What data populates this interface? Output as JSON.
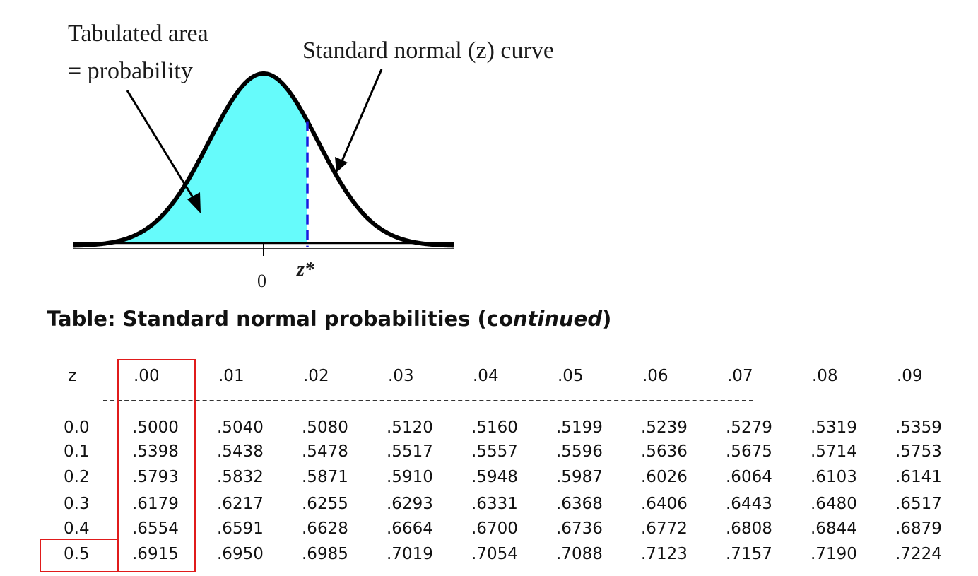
{
  "figure": {
    "annotation_area_line1": "Tabulated area",
    "annotation_area_line2": "= probability",
    "annotation_curve": "Standard normal (z) curve",
    "label_zero": "0",
    "label_zstar": "z*",
    "colors": {
      "shaded_area": "#66fbfb",
      "curve": "#000000",
      "zstar_line": "#1a1adf"
    }
  },
  "table": {
    "title_prefix": "Table: Standard normal probabilities (co",
    "title_italic": "ntinued",
    "title_suffix": ")",
    "header": {
      "z": "z",
      "columns": [
        ".00",
        ".01",
        ".02",
        ".03",
        ".04",
        ".05",
        ".06",
        ".07",
        ".08",
        ".09"
      ]
    },
    "rows": [
      {
        "z": "0.0",
        "values": [
          ".5000",
          ".5040",
          ".5080",
          ".5120",
          ".5160",
          ".5199",
          ".5239",
          ".5279",
          ".5319",
          ".5359"
        ]
      },
      {
        "z": "0.1",
        "values": [
          ".5398",
          ".5438",
          ".5478",
          ".5517",
          ".5557",
          ".5596",
          ".5636",
          ".5675",
          ".5714",
          ".5753"
        ]
      },
      {
        "z": "0.2",
        "values": [
          ".5793",
          ".5832",
          ".5871",
          ".5910",
          ".5948",
          ".5987",
          ".6026",
          ".6064",
          ".6103",
          ".6141"
        ]
      },
      {
        "z": "0.3",
        "values": [
          ".6179",
          ".6217",
          ".6255",
          ".6293",
          ".6331",
          ".6368",
          ".6406",
          ".6443",
          ".6480",
          ".6517"
        ]
      },
      {
        "z": "0.4",
        "values": [
          ".6554",
          ".6591",
          ".6628",
          ".6664",
          ".6700",
          ".6736",
          ".6772",
          ".6808",
          ".6844",
          ".6879"
        ]
      },
      {
        "z": "0.5",
        "values": [
          ".6915",
          ".6950",
          ".6985",
          ".7019",
          ".7054",
          ".7088",
          ".7123",
          ".7157",
          ".7190",
          ".7224"
        ]
      }
    ],
    "highlight": {
      "column": ".00",
      "row": "0.5",
      "color": "#e01b1b"
    }
  }
}
